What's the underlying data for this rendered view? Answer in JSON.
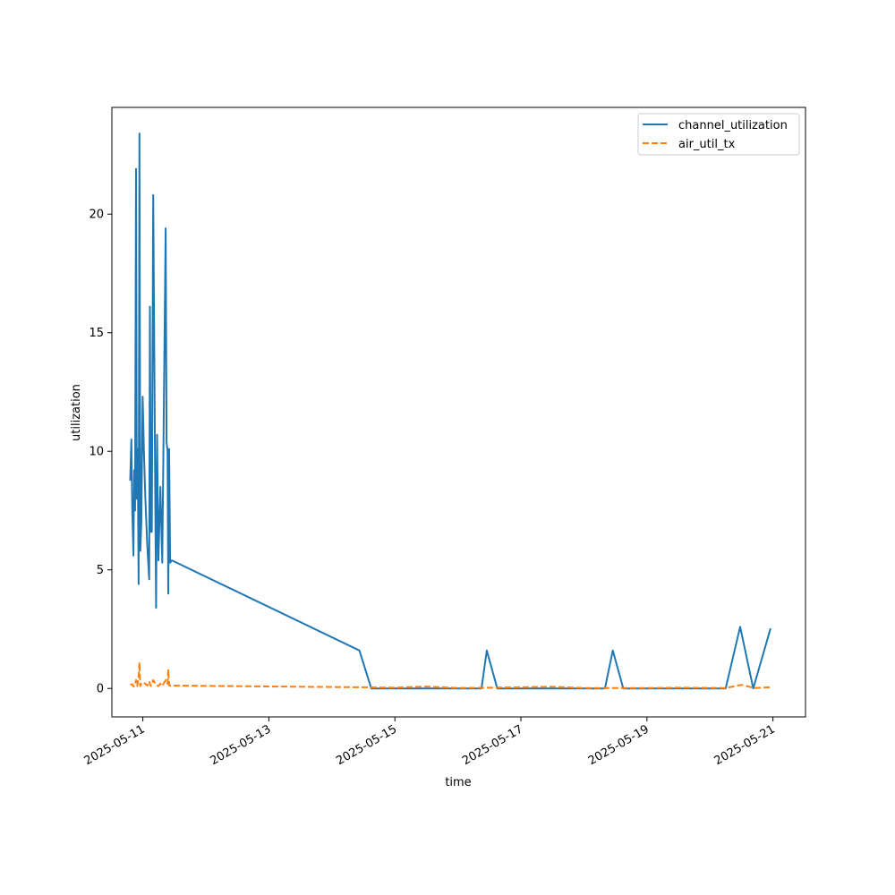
{
  "chart_data": {
    "type": "line",
    "title": "",
    "xlabel": "time",
    "ylabel": "utilization",
    "x_tick_labels": [
      "2025-05-11",
      "2025-05-13",
      "2025-05-15",
      "2025-05-17",
      "2025-05-19",
      "2025-05-21"
    ],
    "y_ticks": [
      0,
      5,
      10,
      15,
      20
    ],
    "xlim": [
      "2025-05-10 12:12",
      "2025-05-21 12:24"
    ],
    "ylim": [
      -1.2,
      24.5
    ],
    "grid": false,
    "legend_position": "top-right",
    "series": [
      {
        "name": "channel_utilization",
        "color": "#1f77b4",
        "dash": "solid",
        "points": [
          [
            "2025-05-10 19:12",
            8.8
          ],
          [
            "2025-05-10 19:38",
            10.5
          ],
          [
            "2025-05-10 19:58",
            7.5
          ],
          [
            "2025-05-10 20:24",
            5.6
          ],
          [
            "2025-05-10 20:41",
            9.2
          ],
          [
            "2025-05-10 21:02",
            7.5
          ],
          [
            "2025-05-10 21:24",
            21.9
          ],
          [
            "2025-05-10 21:41",
            8.0
          ],
          [
            "2025-05-10 22:02",
            10.1
          ],
          [
            "2025-05-10 22:24",
            4.4
          ],
          [
            "2025-05-10 22:41",
            23.4
          ],
          [
            "2025-05-10 23:02",
            5.8
          ],
          [
            "2025-05-10 23:24",
            7.0
          ],
          [
            "2025-05-10 23:55",
            12.3
          ],
          [
            "2025-05-11 00:24",
            10.0
          ],
          [
            "2025-05-11 00:58",
            8.0
          ],
          [
            "2025-05-11 01:41",
            6.0
          ],
          [
            "2025-05-11 02:24",
            4.6
          ],
          [
            "2025-05-11 02:41",
            16.1
          ],
          [
            "2025-05-11 03:02",
            6.6
          ],
          [
            "2025-05-11 03:24",
            6.6
          ],
          [
            "2025-05-11 03:58",
            20.8
          ],
          [
            "2025-05-11 04:41",
            8.5
          ],
          [
            "2025-05-11 05:02",
            3.4
          ],
          [
            "2025-05-11 05:24",
            10.7
          ],
          [
            "2025-05-11 05:55",
            5.4
          ],
          [
            "2025-05-11 06:41",
            8.5
          ],
          [
            "2025-05-11 07:24",
            5.3
          ],
          [
            "2025-05-11 08:41",
            19.4
          ],
          [
            "2025-05-11 09:02",
            10.4
          ],
          [
            "2025-05-11 09:24",
            10.0
          ],
          [
            "2025-05-11 09:41",
            4.0
          ],
          [
            "2025-05-11 10:02",
            10.1
          ],
          [
            "2025-05-11 10:24",
            5.3
          ],
          [
            "2025-05-11 11:02",
            5.4
          ],
          [
            "2025-05-14 10:30",
            1.6
          ],
          [
            "2025-05-14 15:00",
            0.0
          ],
          [
            "2025-05-16 09:00",
            0.0
          ],
          [
            "2025-05-16 11:00",
            1.6
          ],
          [
            "2025-05-16 15:00",
            0.0
          ],
          [
            "2025-05-18 08:00",
            0.0
          ],
          [
            "2025-05-18 11:00",
            1.6
          ],
          [
            "2025-05-18 15:00",
            0.0
          ],
          [
            "2025-05-20 06:00",
            0.0
          ],
          [
            "2025-05-20 11:30",
            2.6
          ],
          [
            "2025-05-20 16:30",
            0.0
          ],
          [
            "2025-05-20 23:00",
            2.5
          ]
        ]
      },
      {
        "name": "air_util_tx",
        "color": "#ff7f0e",
        "dash": "dashed",
        "points": [
          [
            "2025-05-10 19:12",
            0.15
          ],
          [
            "2025-05-10 20:00",
            0.18
          ],
          [
            "2025-05-10 20:24",
            0.08
          ],
          [
            "2025-05-10 21:00",
            0.12
          ],
          [
            "2025-05-10 21:24",
            0.35
          ],
          [
            "2025-05-10 21:50",
            0.1
          ],
          [
            "2025-05-10 22:24",
            0.5
          ],
          [
            "2025-05-10 22:41",
            1.1
          ],
          [
            "2025-05-10 23:00",
            0.1
          ],
          [
            "2025-05-10 23:30",
            0.2
          ],
          [
            "2025-05-11 00:24",
            0.25
          ],
          [
            "2025-05-11 01:41",
            0.12
          ],
          [
            "2025-05-11 02:24",
            0.3
          ],
          [
            "2025-05-11 03:02",
            0.1
          ],
          [
            "2025-05-11 03:58",
            0.35
          ],
          [
            "2025-05-11 05:02",
            0.15
          ],
          [
            "2025-05-11 05:55",
            0.1
          ],
          [
            "2025-05-11 06:41",
            0.2
          ],
          [
            "2025-05-11 07:24",
            0.1
          ],
          [
            "2025-05-11 08:41",
            0.35
          ],
          [
            "2025-05-11 09:24",
            0.2
          ],
          [
            "2025-05-11 09:41",
            0.8
          ],
          [
            "2025-05-11 10:02",
            0.12
          ],
          [
            "2025-05-11 11:02",
            0.12
          ],
          [
            "2025-05-14 10:30",
            0.05
          ],
          [
            "2025-05-15 00:00",
            0.03
          ],
          [
            "2025-05-15 12:00",
            0.08
          ],
          [
            "2025-05-16 00:00",
            0.02
          ],
          [
            "2025-05-16 12:00",
            0.03
          ],
          [
            "2025-05-17 12:00",
            0.07
          ],
          [
            "2025-05-18 00:00",
            0.02
          ],
          [
            "2025-05-19 00:00",
            0.02
          ],
          [
            "2025-05-19 12:00",
            0.03
          ],
          [
            "2025-05-20 06:00",
            0.02
          ],
          [
            "2025-05-20 12:00",
            0.15
          ],
          [
            "2025-05-20 17:00",
            0.02
          ],
          [
            "2025-05-20 23:00",
            0.05
          ]
        ]
      }
    ]
  }
}
